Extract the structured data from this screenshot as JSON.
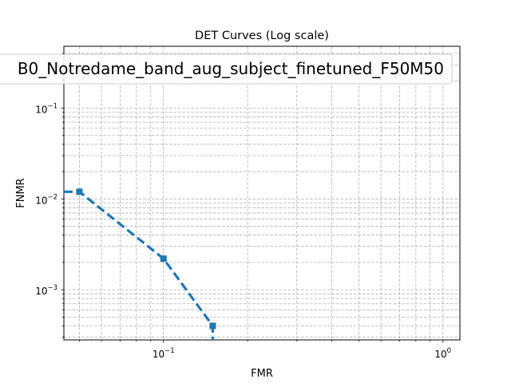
{
  "chart_data": {
    "type": "line",
    "title": "DET Curves (Log scale)",
    "xlabel": "FMR",
    "ylabel": "FNMR",
    "xscale": "log",
    "yscale": "log",
    "xlim": [
      0.044,
      1.15
    ],
    "ylim": [
      0.00028,
      0.48
    ],
    "grid": true,
    "grid_style": "dashed",
    "legend_position": "top-left",
    "x_major_ticks": [
      {
        "value": 0.1,
        "base": "10",
        "exp": "−1"
      },
      {
        "value": 1,
        "base": "10",
        "exp": "0"
      }
    ],
    "y_major_ticks": [
      {
        "value": 0.001,
        "base": "10",
        "exp": "−3"
      },
      {
        "value": 0.01,
        "base": "10",
        "exp": "−2"
      },
      {
        "value": 0.1,
        "base": "10",
        "exp": "−1"
      }
    ],
    "series": [
      {
        "name": "B0_Notredame_band_aug_subject_finetuned_F50M50",
        "color": "#1f77b4",
        "line_style": "dashed",
        "marker": "square",
        "x": [
          0.044,
          0.05,
          0.1,
          0.15,
          0.15
        ],
        "y": [
          0.012,
          0.012,
          0.0022,
          0.0004,
          0.00028
        ],
        "marker_x": [
          0.05,
          0.1,
          0.15
        ],
        "marker_y": [
          0.012,
          0.0022,
          0.0004
        ]
      }
    ]
  }
}
